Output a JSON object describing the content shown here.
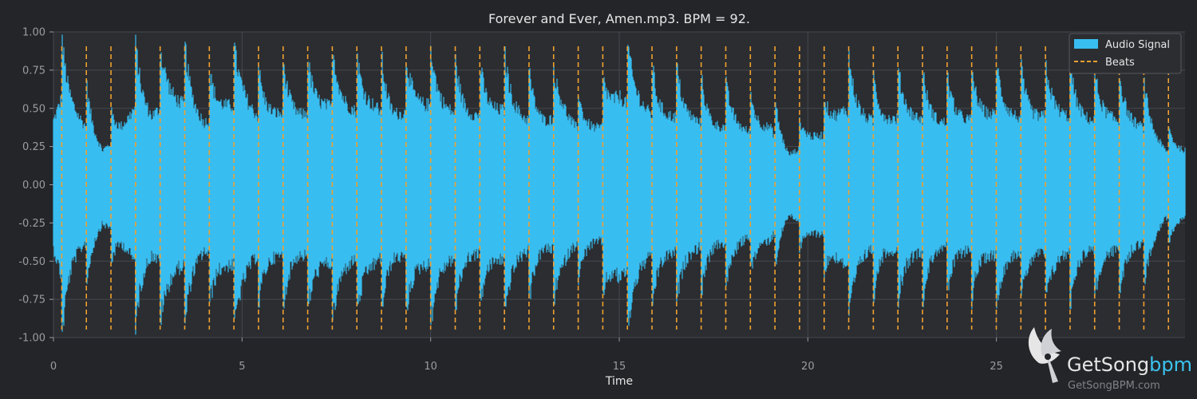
{
  "chart_data": {
    "type": "line",
    "title": "Forever and Ever, Amen.mp3. BPM =  92.",
    "xlabel": "Time",
    "ylabel": "",
    "xlim": [
      0,
      30
    ],
    "ylim": [
      -1.0,
      1.0
    ],
    "xticks": [
      0,
      5,
      10,
      15,
      20,
      25
    ],
    "yticks": [
      1.0,
      0.75,
      0.5,
      0.25,
      0.0,
      -0.25,
      -0.5,
      -0.75,
      -1.0
    ],
    "grid": true,
    "legend": {
      "placement": "top-right",
      "entries": [
        {
          "label": "Audio Signal",
          "kind": "patch"
        },
        {
          "label": "Beats",
          "kind": "dashed-line"
        }
      ]
    },
    "series": [
      {
        "name": "Audio Signal",
        "kind": "waveform",
        "color": "#38bdf0",
        "envelope_time": [
          0.0,
          0.2,
          0.5,
          0.9,
          1.3,
          1.8,
          2.2,
          2.6,
          3.0,
          3.5,
          4.0,
          4.5,
          5.0,
          5.5,
          6.0,
          6.5,
          7.0,
          7.5,
          8.0,
          8.5,
          9.0,
          9.5,
          10.0,
          10.5,
          11.0,
          11.5,
          12.0,
          12.5,
          13.0,
          13.5,
          14.0,
          14.5,
          15.0,
          15.5,
          16.0,
          16.5,
          17.0,
          17.5,
          18.0,
          18.5,
          19.0,
          19.5,
          20.0,
          20.5,
          21.0,
          21.5,
          22.0,
          22.5,
          23.0,
          23.5,
          24.0,
          24.5,
          25.0,
          25.5,
          26.0,
          26.5,
          27.0,
          27.5,
          28.0,
          28.5,
          29.0,
          29.5,
          30.0
        ],
        "envelope_max": [
          0.65,
          0.9,
          0.78,
          0.6,
          0.35,
          0.55,
          0.85,
          0.7,
          0.9,
          0.85,
          0.65,
          0.8,
          0.88,
          0.7,
          0.75,
          0.72,
          0.8,
          0.85,
          0.78,
          0.82,
          0.7,
          0.8,
          0.85,
          0.78,
          0.72,
          0.75,
          0.8,
          0.7,
          0.65,
          0.75,
          0.55,
          0.6,
          0.9,
          0.85,
          0.7,
          0.72,
          0.68,
          0.6,
          0.62,
          0.55,
          0.6,
          0.3,
          0.45,
          0.55,
          0.8,
          0.7,
          0.65,
          0.72,
          0.7,
          0.65,
          0.68,
          0.7,
          0.75,
          0.72,
          0.7,
          0.75,
          0.72,
          0.68,
          0.7,
          0.65,
          0.6,
          0.35,
          0.35
        ],
        "envelope_min": [
          -0.65,
          -0.95,
          -0.75,
          -0.6,
          -0.4,
          -0.55,
          -0.85,
          -0.72,
          -0.9,
          -0.85,
          -0.7,
          -0.82,
          -0.9,
          -0.72,
          -0.75,
          -0.72,
          -0.8,
          -0.85,
          -0.8,
          -0.82,
          -0.72,
          -0.8,
          -0.85,
          -0.8,
          -0.72,
          -0.75,
          -0.8,
          -0.72,
          -0.65,
          -0.75,
          -0.58,
          -0.6,
          -0.95,
          -0.85,
          -0.72,
          -0.72,
          -0.68,
          -0.62,
          -0.62,
          -0.55,
          -0.58,
          -0.3,
          -0.45,
          -0.55,
          -0.85,
          -0.72,
          -0.65,
          -0.72,
          -0.72,
          -0.65,
          -0.68,
          -0.7,
          -0.75,
          -0.72,
          -0.7,
          -0.75,
          -0.72,
          -0.68,
          -0.7,
          -0.65,
          -0.6,
          -0.35,
          -0.35
        ]
      },
      {
        "name": "Beats",
        "kind": "vertical-dashed",
        "color": "#f0a030",
        "start": 0.22,
        "interval": 0.652,
        "end": 29.9
      }
    ]
  },
  "watermark": {
    "name_main": "GetSong",
    "name_accent": "bpm",
    "url": "GetSongBPM.com",
    "accent_color": "#3cc3f0"
  }
}
